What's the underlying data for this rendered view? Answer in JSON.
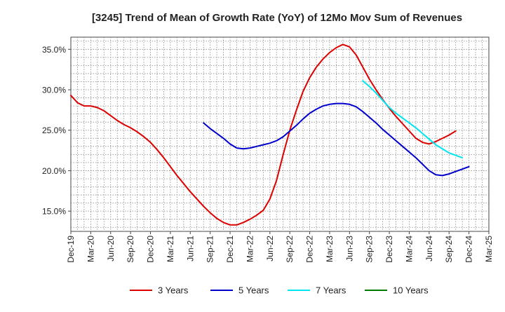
{
  "chart_data": {
    "type": "line",
    "title": "[3245]  Trend of Mean of Growth Rate (YoY) of 12Mo Mov Sum of Revenues",
    "xlabel": "",
    "ylabel": "",
    "ylim": [
      12.5,
      36.5
    ],
    "y_ticks": [
      15.0,
      20.0,
      25.0,
      30.0,
      35.0
    ],
    "y_tick_labels": [
      "15.0%",
      "20.0%",
      "25.0%",
      "30.0%",
      "35.0%"
    ],
    "x_start": "Dec-19",
    "x_tick_step_months": 3,
    "x_tick_labels": [
      "Dec-19",
      "Mar-20",
      "Jun-20",
      "Sep-20",
      "Dec-20",
      "Mar-21",
      "Jun-21",
      "Sep-21",
      "Dec-21",
      "Mar-22",
      "Jun-22",
      "Sep-22",
      "Dec-22",
      "Mar-23",
      "Jun-23",
      "Sep-23",
      "Dec-23",
      "Mar-24",
      "Jun-24",
      "Sep-24",
      "Dec-24",
      "Mar-25"
    ],
    "grid": true,
    "legend_position": "bottom",
    "series": [
      {
        "name": "3 Years",
        "color": "#dd0000",
        "start_index": 0,
        "values": [
          29.3,
          28.4,
          28.0,
          28.0,
          27.8,
          27.4,
          26.8,
          26.2,
          25.7,
          25.3,
          24.8,
          24.2,
          23.5,
          22.6,
          21.6,
          20.5,
          19.4,
          18.4,
          17.4,
          16.5,
          15.6,
          14.8,
          14.1,
          13.6,
          13.3,
          13.3,
          13.6,
          14.0,
          14.5,
          15.1,
          16.5,
          18.8,
          22.0,
          25.0,
          27.5,
          29.8,
          31.5,
          32.8,
          33.8,
          34.6,
          35.2,
          35.6,
          35.3,
          34.3,
          32.8,
          31.3,
          30.0,
          28.8,
          27.7,
          26.7,
          25.8,
          24.9,
          24.0,
          23.5,
          23.3,
          23.6,
          24.0,
          24.4,
          24.9
        ]
      },
      {
        "name": "5 Years",
        "color": "#0000cc",
        "start_index": 20,
        "values": [
          25.9,
          25.2,
          24.6,
          24.0,
          23.3,
          22.8,
          22.7,
          22.8,
          23.0,
          23.2,
          23.4,
          23.7,
          24.2,
          24.9,
          25.6,
          26.4,
          27.1,
          27.6,
          28.0,
          28.2,
          28.3,
          28.3,
          28.2,
          27.9,
          27.3,
          26.6,
          25.9,
          25.1,
          24.4,
          23.7,
          23.0,
          22.3,
          21.6,
          20.8,
          20.0,
          19.5,
          19.4,
          19.6,
          19.9,
          20.2,
          20.5
        ]
      },
      {
        "name": "7 Years",
        "color": "#00e5ee",
        "start_index": 44,
        "values": [
          31.1,
          30.4,
          29.6,
          28.7,
          27.8,
          27.1,
          26.5,
          25.9,
          25.3,
          24.6,
          23.9,
          23.2,
          22.7,
          22.2,
          21.9,
          21.6
        ]
      },
      {
        "name": "10 Years",
        "color": "#007a00",
        "start_index": 0,
        "values": []
      }
    ]
  }
}
